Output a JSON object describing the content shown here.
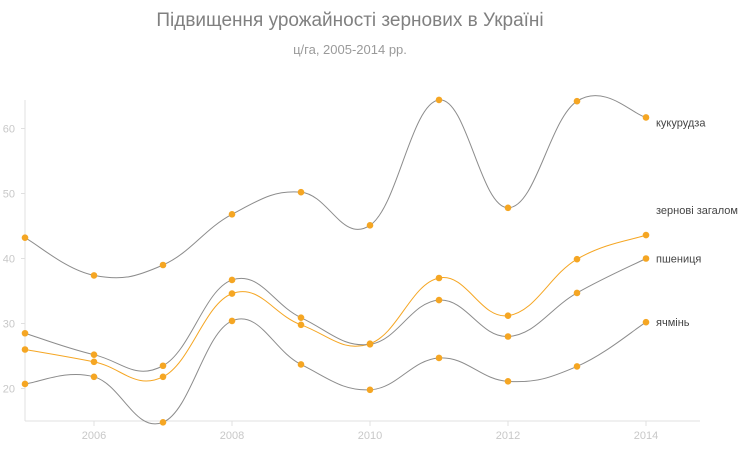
{
  "chart_data": {
    "type": "line",
    "title": "Підвищення урожайності зернових в Україні",
    "subtitle": "ц/га, 2005-2014 рр.",
    "x": [
      2005,
      2006,
      2007,
      2008,
      2009,
      2010,
      2011,
      2012,
      2013,
      2014
    ],
    "x_ticks": [
      "2006",
      "2008",
      "2010",
      "2012",
      "2014"
    ],
    "y_ticks": [
      "20",
      "30",
      "40",
      "50",
      "60"
    ],
    "ylim": [
      15,
      65
    ],
    "grid": false,
    "colors": {
      "highlight": "#f5a623",
      "neutral": "#8c8c8c",
      "axis": "#e0e0e0"
    },
    "series": [
      {
        "name": "кукурудза",
        "highlight": false,
        "values": [
          43.2,
          37.4,
          39.0,
          46.8,
          50.2,
          45.1,
          64.4,
          47.8,
          64.2,
          61.7
        ]
      },
      {
        "name": "зернові загалом",
        "highlight": true,
        "values": [
          26.0,
          24.1,
          21.8,
          34.6,
          29.8,
          26.9,
          37.0,
          31.2,
          39.9,
          43.6
        ]
      },
      {
        "name": "пшениця",
        "highlight": false,
        "values": [
          28.5,
          25.2,
          23.5,
          36.7,
          30.9,
          26.8,
          33.6,
          28.0,
          34.7,
          40.0
        ]
      },
      {
        "name": "ячмінь",
        "highlight": false,
        "values": [
          20.7,
          21.8,
          14.8,
          30.4,
          23.7,
          19.8,
          24.7,
          21.1,
          23.4,
          30.2
        ]
      }
    ]
  }
}
